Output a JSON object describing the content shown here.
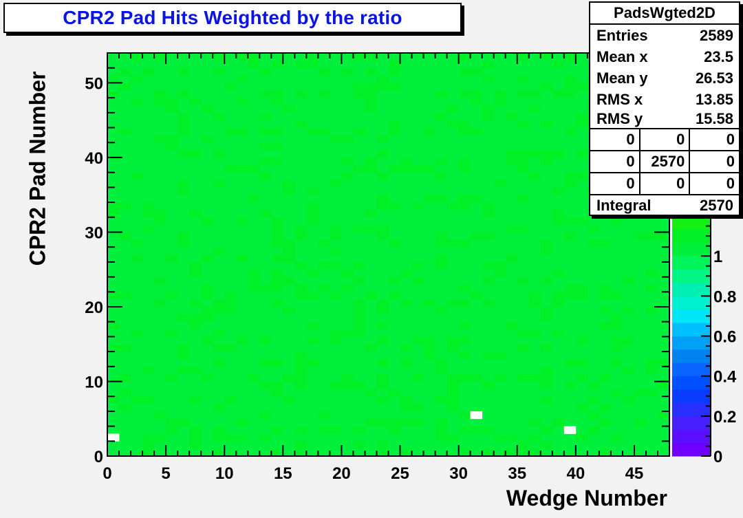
{
  "chart_data": {
    "type": "heatmap",
    "title": "CPR2 Pad Hits Weighted by the ratio",
    "xlabel": "Wedge Number",
    "ylabel": "CPR2 Pad Number",
    "x_bins": 48,
    "y_bins": 54,
    "xlim": [
      0,
      48
    ],
    "ylim": [
      0,
      54
    ],
    "x_ticks": [
      "0",
      "5",
      "10",
      "15",
      "20",
      "25",
      "30",
      "35",
      "40",
      "45"
    ],
    "x_tick_values": [
      0,
      5,
      10,
      15,
      20,
      25,
      30,
      35,
      40,
      45
    ],
    "y_ticks": [
      "0",
      "10",
      "20",
      "30",
      "40",
      "50"
    ],
    "y_tick_values": [
      0,
      10,
      20,
      30,
      40,
      50
    ],
    "z_range": [
      0,
      1.2
    ],
    "z_ticks": [
      "0",
      "0.2",
      "0.4",
      "0.6",
      "0.8",
      "1"
    ],
    "z_tick_values": [
      0,
      0.2,
      0.4,
      0.6,
      0.8,
      1.0
    ],
    "value_levels": [
      1.0,
      1.1
    ],
    "base_value": 1.0,
    "empty_cells": [
      [
        0,
        2
      ],
      [
        31,
        5
      ],
      [
        39,
        3
      ]
    ],
    "palette": [
      "#6e00ff",
      "#5a10ff",
      "#4620ff",
      "#2830ff",
      "#0a3cff",
      "#0050ff",
      "#0a64ff",
      "#0082f0",
      "#00a0f5",
      "#00c0ff",
      "#00e6f5",
      "#00f0d2",
      "#00f0b4",
      "#00f582",
      "#00f55a",
      "#00f03c",
      "#00f028",
      "#14f014"
    ]
  },
  "stats": {
    "name": "PadsWgted2D",
    "rows": [
      {
        "label": "Entries",
        "value": "2589"
      },
      {
        "label": "Mean x",
        "value": "23.5"
      },
      {
        "label": "Mean y",
        "value": "26.53"
      },
      {
        "label": "RMS x",
        "value": "13.85"
      },
      {
        "label": "RMS y",
        "value": "15.58"
      }
    ],
    "grid": [
      [
        "0",
        "0",
        "0"
      ],
      [
        "0",
        "2570",
        "0"
      ],
      [
        "0",
        "0",
        "0"
      ]
    ],
    "integral_label": "Integral",
    "integral_value": "2570"
  }
}
